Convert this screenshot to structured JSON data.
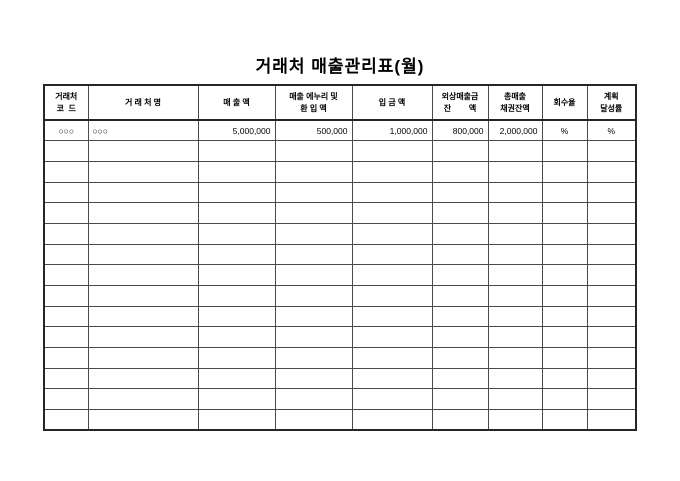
{
  "page": {
    "title": "거래처 매출관리표(월)"
  },
  "table": {
    "header": {
      "code": [
        "거래처",
        "코  드"
      ],
      "name": [
        "거 래 처 명"
      ],
      "sales": [
        "매 출 액"
      ],
      "allowance": [
        "매출 에누리 및",
        "환 입 액"
      ],
      "deposit": [
        "입 금 액"
      ],
      "receivable": [
        "외상매출금",
        "잔        액"
      ],
      "bond": [
        "총매출",
        "채권잔액"
      ],
      "recovery": [
        "회수율"
      ],
      "plan": [
        "계획",
        "달성률"
      ]
    },
    "rows": [
      [
        "○○○",
        "○○○",
        "5,000,000",
        "500,000",
        "1,000,000",
        "800,000",
        "2,000,000",
        "%",
        "%"
      ],
      [
        "",
        "",
        "",
        "",
        "",
        "",
        "",
        "",
        ""
      ],
      [
        "",
        "",
        "",
        "",
        "",
        "",
        "",
        "",
        ""
      ],
      [
        "",
        "",
        "",
        "",
        "",
        "",
        "",
        "",
        ""
      ],
      [
        "",
        "",
        "",
        "",
        "",
        "",
        "",
        "",
        ""
      ],
      [
        "",
        "",
        "",
        "",
        "",
        "",
        "",
        "",
        ""
      ],
      [
        "",
        "",
        "",
        "",
        "",
        "",
        "",
        "",
        ""
      ],
      [
        "",
        "",
        "",
        "",
        "",
        "",
        "",
        "",
        ""
      ],
      [
        "",
        "",
        "",
        "",
        "",
        "",
        "",
        "",
        ""
      ],
      [
        "",
        "",
        "",
        "",
        "",
        "",
        "",
        "",
        ""
      ],
      [
        "",
        "",
        "",
        "",
        "",
        "",
        "",
        "",
        ""
      ],
      [
        "",
        "",
        "",
        "",
        "",
        "",
        "",
        "",
        ""
      ],
      [
        "",
        "",
        "",
        "",
        "",
        "",
        "",
        "",
        ""
      ],
      [
        "",
        "",
        "",
        "",
        "",
        "",
        "",
        "",
        ""
      ],
      [
        "",
        "",
        "",
        "",
        "",
        "",
        "",
        "",
        ""
      ]
    ],
    "colors": {
      "grid_line": "#4a4a4a",
      "outer_border": "#262626",
      "text": "#000000",
      "background": "#ffffff"
    }
  }
}
